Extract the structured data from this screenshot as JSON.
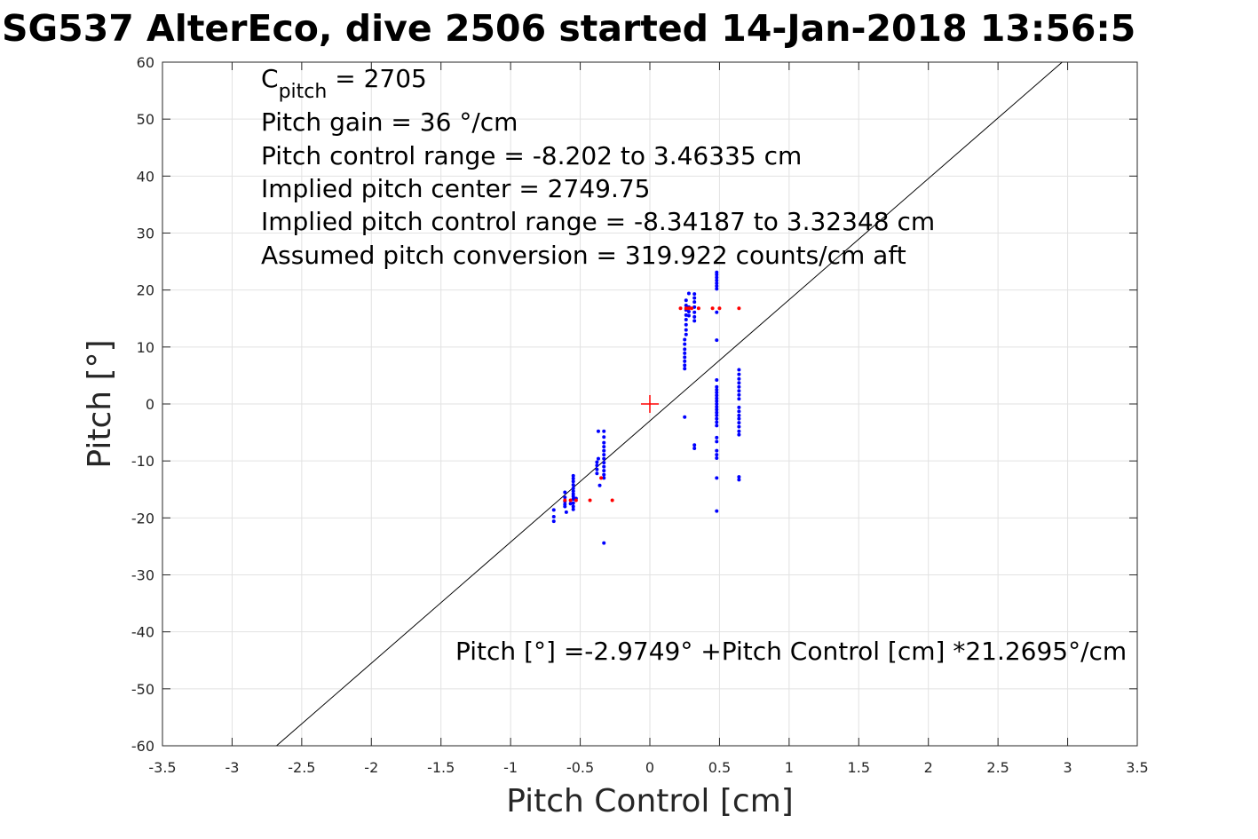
{
  "chart_data": {
    "type": "scatter",
    "title": "SG537 AlterEco, dive 2506 started 14-Jan-2018 13:56:5",
    "xlabel": "Pitch Control [cm]",
    "ylabel": "Pitch [°]",
    "xlim": [
      -3.5,
      3.5
    ],
    "ylim": [
      -60,
      60
    ],
    "grid": true,
    "x_ticks": [
      -3.5,
      -3,
      -2.5,
      -2,
      -1.5,
      -1,
      -0.5,
      0,
      0.5,
      1,
      1.5,
      2,
      2.5,
      3,
      3.5
    ],
    "y_ticks": [
      -60,
      -50,
      -40,
      -30,
      -20,
      -10,
      0,
      10,
      20,
      30,
      40,
      50,
      60
    ],
    "annotations": {
      "c_pitch_main": "C",
      "c_pitch_sub": "pitch",
      "c_pitch_value": " = 2705",
      "lines": [
        "Pitch gain = 36 °/cm",
        "Pitch control range = -8.202 to 3.46335 cm",
        "Implied pitch center = 2749.75",
        "Implied pitch control range = -8.34187 to 3.32348 cm",
        "Assumed pitch conversion = 319.922 counts/cm aft"
      ],
      "fit_equation": "Pitch [°] =-2.9749° +Pitch Control [cm] *21.2695°/cm"
    },
    "fit_line": {
      "intercept": -2.9749,
      "slope": 21.2695,
      "color": "#000000"
    },
    "center_marker": {
      "x": 0,
      "y": 0,
      "color": "#ff0000"
    },
    "series": [
      {
        "color": "#0000ff",
        "points": [
          [
            -0.69,
            -18.6
          ],
          [
            -0.69,
            -19.8
          ],
          [
            -0.69,
            -20.6
          ],
          [
            -0.61,
            -15.5
          ],
          [
            -0.61,
            -16.4
          ],
          [
            -0.61,
            -17.1
          ],
          [
            -0.61,
            -17.6
          ],
          [
            -0.61,
            -18.0
          ],
          [
            -0.6,
            -19.0
          ],
          [
            -0.55,
            -12.6
          ],
          [
            -0.55,
            -13.1
          ],
          [
            -0.55,
            -13.6
          ],
          [
            -0.55,
            -14.2
          ],
          [
            -0.55,
            -14.8
          ],
          [
            -0.55,
            -15.3
          ],
          [
            -0.55,
            -15.8
          ],
          [
            -0.55,
            -16.2
          ],
          [
            -0.55,
            -16.7
          ],
          [
            -0.55,
            -17.4
          ],
          [
            -0.55,
            -18.0
          ],
          [
            -0.55,
            -18.5
          ],
          [
            -0.57,
            -17.5
          ],
          [
            -0.53,
            -16.6
          ],
          [
            -0.38,
            -10.2
          ],
          [
            -0.38,
            -10.8
          ],
          [
            -0.38,
            -11.5
          ],
          [
            -0.38,
            -12.2
          ],
          [
            -0.37,
            -4.8
          ],
          [
            -0.37,
            -9.6
          ],
          [
            -0.36,
            -14.3
          ],
          [
            -0.33,
            -4.8
          ],
          [
            -0.33,
            -5.8
          ],
          [
            -0.33,
            -6.8
          ],
          [
            -0.33,
            -7.5
          ],
          [
            -0.33,
            -8.2
          ],
          [
            -0.33,
            -8.9
          ],
          [
            -0.33,
            -9.6
          ],
          [
            -0.33,
            -10.3
          ],
          [
            -0.33,
            -11.0
          ],
          [
            -0.33,
            -11.7
          ],
          [
            -0.33,
            -12.4
          ],
          [
            -0.33,
            -13.0
          ],
          [
            -0.33,
            -24.4
          ],
          [
            0.25,
            -2.3
          ],
          [
            0.25,
            6.2
          ],
          [
            0.25,
            6.8
          ],
          [
            0.25,
            7.5
          ],
          [
            0.25,
            8.2
          ],
          [
            0.25,
            8.9
          ],
          [
            0.25,
            9.6
          ],
          [
            0.25,
            10.5
          ],
          [
            0.25,
            11.3
          ],
          [
            0.26,
            12.2
          ],
          [
            0.26,
            13.0
          ],
          [
            0.26,
            13.9
          ],
          [
            0.26,
            14.8
          ],
          [
            0.26,
            15.6
          ],
          [
            0.26,
            16.5
          ],
          [
            0.26,
            17.3
          ],
          [
            0.26,
            18.2
          ],
          [
            0.28,
            15.5
          ],
          [
            0.28,
            16.2
          ],
          [
            0.28,
            17.0
          ],
          [
            0.28,
            19.4
          ],
          [
            0.32,
            14.6
          ],
          [
            0.32,
            15.3
          ],
          [
            0.32,
            16.1
          ],
          [
            0.32,
            17.0
          ],
          [
            0.32,
            17.9
          ],
          [
            0.32,
            18.6
          ],
          [
            0.32,
            19.3
          ],
          [
            0.32,
            -7.2
          ],
          [
            0.32,
            -7.8
          ],
          [
            0.48,
            20.2
          ],
          [
            0.48,
            20.7
          ],
          [
            0.48,
            21.2
          ],
          [
            0.48,
            21.7
          ],
          [
            0.48,
            22.2
          ],
          [
            0.48,
            22.7
          ],
          [
            0.48,
            23.1
          ],
          [
            0.48,
            16.1
          ],
          [
            0.48,
            11.2
          ],
          [
            0.48,
            4.2
          ],
          [
            0.48,
            3.0
          ],
          [
            0.48,
            2.5
          ],
          [
            0.48,
            2.0
          ],
          [
            0.48,
            1.5
          ],
          [
            0.48,
            1.0
          ],
          [
            0.48,
            0.5
          ],
          [
            0.48,
            0.0
          ],
          [
            0.48,
            -0.5
          ],
          [
            0.48,
            -1.0
          ],
          [
            0.48,
            -1.5
          ],
          [
            0.48,
            -2.0
          ],
          [
            0.48,
            -2.6
          ],
          [
            0.48,
            -3.2
          ],
          [
            0.48,
            -3.8
          ],
          [
            0.48,
            -5.9
          ],
          [
            0.48,
            -6.6
          ],
          [
            0.48,
            -8.2
          ],
          [
            0.48,
            -8.9
          ],
          [
            0.48,
            -9.5
          ],
          [
            0.48,
            -13.0
          ],
          [
            0.48,
            -18.8
          ],
          [
            0.64,
            6.0
          ],
          [
            0.64,
            5.2
          ],
          [
            0.64,
            4.4
          ],
          [
            0.64,
            3.7
          ],
          [
            0.64,
            3.0
          ],
          [
            0.64,
            2.3
          ],
          [
            0.64,
            1.6
          ],
          [
            0.64,
            0.9
          ],
          [
            0.64,
            -0.6
          ],
          [
            0.64,
            -1.3
          ],
          [
            0.64,
            -2.0
          ],
          [
            0.64,
            -2.6
          ],
          [
            0.64,
            -3.3
          ],
          [
            0.64,
            -4.0
          ],
          [
            0.64,
            -4.8
          ],
          [
            0.64,
            -5.4
          ],
          [
            0.64,
            -12.8
          ],
          [
            0.64,
            -13.3
          ]
        ]
      },
      {
        "color": "#ff0000",
        "points": [
          [
            -0.61,
            -16.9
          ],
          [
            -0.57,
            -16.9
          ],
          [
            -0.53,
            -16.9
          ],
          [
            -0.43,
            -16.9
          ],
          [
            -0.27,
            -16.9
          ],
          [
            -0.35,
            -13.0
          ],
          [
            0.22,
            16.8
          ],
          [
            0.26,
            16.8
          ],
          [
            0.28,
            16.8
          ],
          [
            0.3,
            16.8
          ],
          [
            0.35,
            16.8
          ],
          [
            0.45,
            16.8
          ],
          [
            0.5,
            16.8
          ],
          [
            0.64,
            16.8
          ]
        ]
      }
    ]
  }
}
